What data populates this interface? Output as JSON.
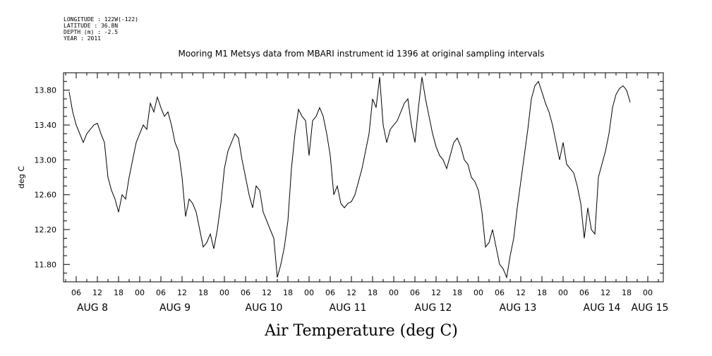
{
  "header": {
    "longitude": "LONGITUDE : 122W(-122)",
    "latitude": "LATITUDE : 36.8N",
    "depth": "DEPTH (m) : -2.5",
    "year": "YEAR : 2011"
  },
  "chart_data": {
    "type": "line",
    "title": "Mooring M1 Metsys data from MBARI instrument id 1396 at original sampling intervals",
    "xlabel": "Air Temperature (deg C)",
    "ylabel": "deg C",
    "ylim": [
      11.6,
      14.0
    ],
    "xlim_hours": [
      0,
      188
    ],
    "y_ticks": [
      "11.80",
      "12.20",
      "12.60",
      "13.00",
      "13.40",
      "13.80"
    ],
    "x_hour_ticks": [
      "06",
      "12",
      "18",
      "00",
      "06",
      "12",
      "18",
      "00",
      "06",
      "12",
      "18",
      "00",
      "06",
      "12",
      "18",
      "00",
      "06",
      "12",
      "18",
      "00",
      "06",
      "12",
      "18",
      "00",
      "06",
      "12",
      "18",
      "00"
    ],
    "day_labels": [
      "AUG  8",
      "AUG  9",
      "AUG 10",
      "AUG 11",
      "AUG 12",
      "AUG 13",
      "AUG 14",
      "AUG 15"
    ],
    "grid": false,
    "series": [
      {
        "points": [
          [
            1,
            13.78
          ],
          [
            2,
            13.55
          ],
          [
            3,
            13.4
          ],
          [
            4,
            13.3
          ],
          [
            5,
            13.2
          ],
          [
            6,
            13.3
          ],
          [
            8,
            13.4
          ],
          [
            9,
            13.42
          ],
          [
            10,
            13.3
          ],
          [
            11,
            13.2
          ],
          [
            12,
            12.8
          ],
          [
            13,
            12.65
          ],
          [
            14,
            12.55
          ],
          [
            15,
            12.4
          ],
          [
            16,
            12.6
          ],
          [
            17,
            12.55
          ],
          [
            18,
            12.8
          ],
          [
            19,
            13.0
          ],
          [
            20,
            13.2
          ],
          [
            21,
            13.3
          ],
          [
            22,
            13.4
          ],
          [
            23,
            13.35
          ],
          [
            24,
            13.65
          ],
          [
            25,
            13.55
          ],
          [
            26,
            13.72
          ],
          [
            27,
            13.6
          ],
          [
            28,
            13.5
          ],
          [
            29,
            13.55
          ],
          [
            30,
            13.4
          ],
          [
            31,
            13.2
          ],
          [
            32,
            13.1
          ],
          [
            33,
            12.8
          ],
          [
            34,
            12.35
          ],
          [
            35,
            12.55
          ],
          [
            36,
            12.5
          ],
          [
            37,
            12.4
          ],
          [
            38,
            12.2
          ],
          [
            39,
            12.0
          ],
          [
            40,
            12.05
          ],
          [
            41,
            12.15
          ],
          [
            42,
            11.98
          ],
          [
            43,
            12.2
          ],
          [
            44,
            12.5
          ],
          [
            45,
            12.9
          ],
          [
            46,
            13.1
          ],
          [
            47,
            13.2
          ],
          [
            48,
            13.3
          ],
          [
            49,
            13.25
          ],
          [
            50,
            13.0
          ],
          [
            51,
            12.8
          ],
          [
            52,
            12.6
          ],
          [
            53,
            12.45
          ],
          [
            54,
            12.7
          ],
          [
            55,
            12.65
          ],
          [
            56,
            12.4
          ],
          [
            57,
            12.3
          ],
          [
            58,
            12.2
          ],
          [
            59,
            12.1
          ],
          [
            60,
            11.65
          ],
          [
            61,
            11.8
          ],
          [
            62,
            12.0
          ],
          [
            63,
            12.3
          ],
          [
            64,
            12.9
          ],
          [
            65,
            13.3
          ],
          [
            66,
            13.58
          ],
          [
            67,
            13.5
          ],
          [
            68,
            13.45
          ],
          [
            69,
            13.05
          ],
          [
            70,
            13.45
          ],
          [
            71,
            13.5
          ],
          [
            72,
            13.6
          ],
          [
            73,
            13.5
          ],
          [
            74,
            13.3
          ],
          [
            75,
            13.05
          ],
          [
            76,
            12.6
          ],
          [
            77,
            12.7
          ],
          [
            78,
            12.5
          ],
          [
            79,
            12.45
          ],
          [
            80,
            12.5
          ],
          [
            81,
            12.52
          ],
          [
            82,
            12.6
          ],
          [
            83,
            12.75
          ],
          [
            84,
            12.9
          ],
          [
            85,
            13.1
          ],
          [
            86,
            13.3
          ],
          [
            87,
            13.7
          ],
          [
            88,
            13.6
          ],
          [
            89,
            13.95
          ],
          [
            90,
            13.4
          ],
          [
            91,
            13.2
          ],
          [
            92,
            13.35
          ],
          [
            94,
            13.45
          ],
          [
            96,
            13.65
          ],
          [
            97,
            13.7
          ],
          [
            98,
            13.4
          ],
          [
            99,
            13.2
          ],
          [
            100,
            13.6
          ],
          [
            101,
            13.95
          ],
          [
            102,
            13.7
          ],
          [
            103,
            13.5
          ],
          [
            104,
            13.3
          ],
          [
            105,
            13.15
          ],
          [
            106,
            13.05
          ],
          [
            107,
            13.0
          ],
          [
            108,
            12.9
          ],
          [
            109,
            13.05
          ],
          [
            110,
            13.2
          ],
          [
            111,
            13.25
          ],
          [
            112,
            13.15
          ],
          [
            113,
            13.0
          ],
          [
            114,
            12.95
          ],
          [
            115,
            12.8
          ],
          [
            116,
            12.75
          ],
          [
            117,
            12.65
          ],
          [
            118,
            12.4
          ],
          [
            119,
            12.0
          ],
          [
            120,
            12.05
          ],
          [
            121,
            12.2
          ],
          [
            122,
            12.0
          ],
          [
            123,
            11.8
          ],
          [
            124,
            11.75
          ],
          [
            125,
            11.65
          ],
          [
            126,
            11.9
          ],
          [
            127,
            12.1
          ],
          [
            128,
            12.45
          ],
          [
            129,
            12.75
          ],
          [
            130,
            13.05
          ],
          [
            131,
            13.35
          ],
          [
            132,
            13.7
          ],
          [
            133,
            13.85
          ],
          [
            134,
            13.9
          ],
          [
            135,
            13.78
          ],
          [
            136,
            13.65
          ],
          [
            137,
            13.55
          ],
          [
            138,
            13.4
          ],
          [
            139,
            13.2
          ],
          [
            140,
            13.0
          ],
          [
            141,
            13.2
          ],
          [
            142,
            12.95
          ],
          [
            143,
            12.9
          ],
          [
            144,
            12.85
          ],
          [
            145,
            12.7
          ],
          [
            146,
            12.5
          ],
          [
            147,
            12.1
          ],
          [
            148,
            12.45
          ],
          [
            149,
            12.2
          ],
          [
            150,
            12.15
          ],
          [
            151,
            12.8
          ],
          [
            152,
            12.95
          ],
          [
            153,
            13.1
          ],
          [
            154,
            13.3
          ],
          [
            155,
            13.6
          ],
          [
            156,
            13.75
          ],
          [
            157,
            13.82
          ],
          [
            158,
            13.85
          ],
          [
            159,
            13.8
          ],
          [
            160,
            13.66
          ]
        ]
      }
    ]
  }
}
